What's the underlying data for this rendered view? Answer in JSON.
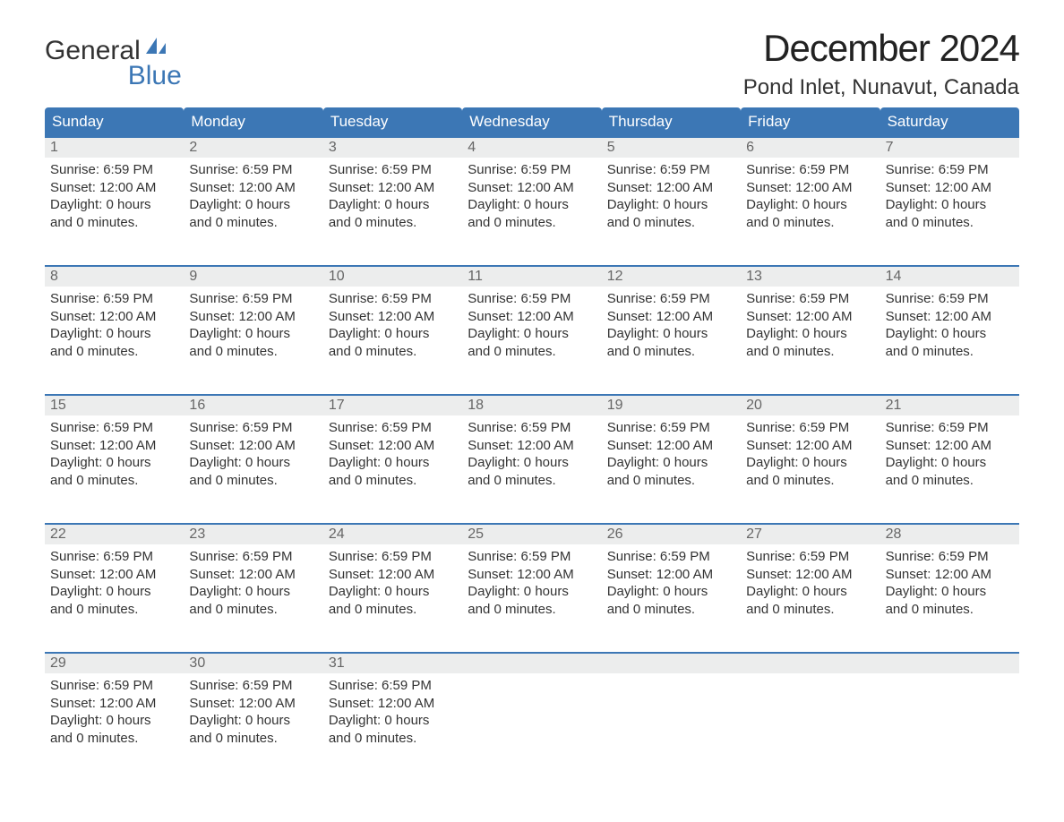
{
  "logo": {
    "text1": "General",
    "text2": "Blue"
  },
  "title": "December 2024",
  "location": "Pond Inlet, Nunavut, Canada",
  "colors": {
    "header_bg": "#3c77b5",
    "header_text": "#ffffff",
    "daynum_bg": "#eceded",
    "daynum_text": "#666666",
    "body_text": "#333333",
    "week_divider": "#3c77b5",
    "page_bg": "#ffffff"
  },
  "fonts": {
    "title_size_pt": 32,
    "location_size_pt": 18,
    "dayhead_size_pt": 13,
    "daynum_size_pt": 12,
    "body_size_pt": 11
  },
  "day_headers": [
    "Sunday",
    "Monday",
    "Tuesday",
    "Wednesday",
    "Thursday",
    "Friday",
    "Saturday"
  ],
  "default_day_text": {
    "sunrise": "Sunrise: 6:59 PM",
    "sunset": "Sunset: 12:00 AM",
    "daylight1": "Daylight: 0 hours",
    "daylight2": "and 0 minutes."
  },
  "weeks": [
    {
      "days": [
        1,
        2,
        3,
        4,
        5,
        6,
        7
      ]
    },
    {
      "days": [
        8,
        9,
        10,
        11,
        12,
        13,
        14
      ]
    },
    {
      "days": [
        15,
        16,
        17,
        18,
        19,
        20,
        21
      ]
    },
    {
      "days": [
        22,
        23,
        24,
        25,
        26,
        27,
        28
      ]
    },
    {
      "days": [
        29,
        30,
        31,
        null,
        null,
        null,
        null
      ]
    }
  ]
}
